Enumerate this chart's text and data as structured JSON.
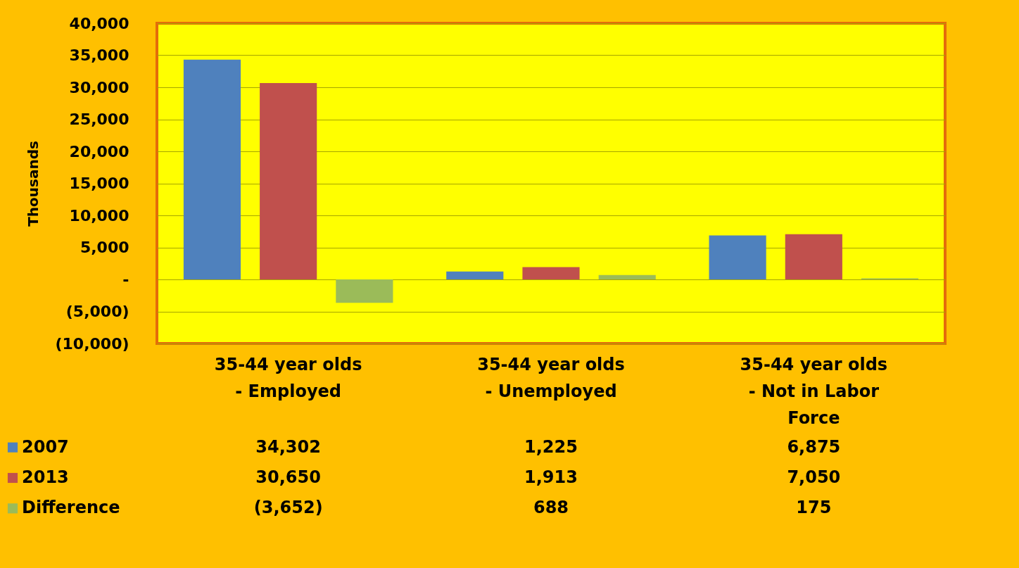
{
  "chart_data": {
    "type": "bar",
    "ylabel": "Thousands",
    "categories": [
      "35-44 year olds - Employed",
      "35-44 year olds - Unemployed",
      "35-44 year olds - Not in Labor Force"
    ],
    "series": [
      {
        "name": "2007",
        "color": "#4f81bd",
        "values": [
          34302,
          1225,
          6875
        ],
        "value_labels": [
          "34,302",
          "1,225",
          "6,875"
        ]
      },
      {
        "name": "2013",
        "color": "#c0504d",
        "values": [
          30650,
          1913,
          7050
        ],
        "value_labels": [
          "30,650",
          "1,913",
          "7,050"
        ]
      },
      {
        "name": "Difference",
        "color": "#9bbb59",
        "values": [
          -3652,
          688,
          175
        ],
        "value_labels": [
          "(3,652)",
          "688",
          "175"
        ]
      }
    ],
    "ylim": [
      -10000,
      40000
    ],
    "yticks": [
      {
        "value": -10000,
        "label": "(10,000)"
      },
      {
        "value": -5000,
        "label": "(5,000)"
      },
      {
        "value": 0,
        "label": "-"
      },
      {
        "value": 5000,
        "label": "5,000"
      },
      {
        "value": 10000,
        "label": "10,000"
      },
      {
        "value": 15000,
        "label": "15,000"
      },
      {
        "value": 20000,
        "label": "20,000"
      },
      {
        "value": 25000,
        "label": "25,000"
      },
      {
        "value": 30000,
        "label": "30,000"
      },
      {
        "value": 35000,
        "label": "35,000"
      },
      {
        "value": 40000,
        "label": "40,000"
      }
    ],
    "grid": "y",
    "legend": "bottom"
  }
}
